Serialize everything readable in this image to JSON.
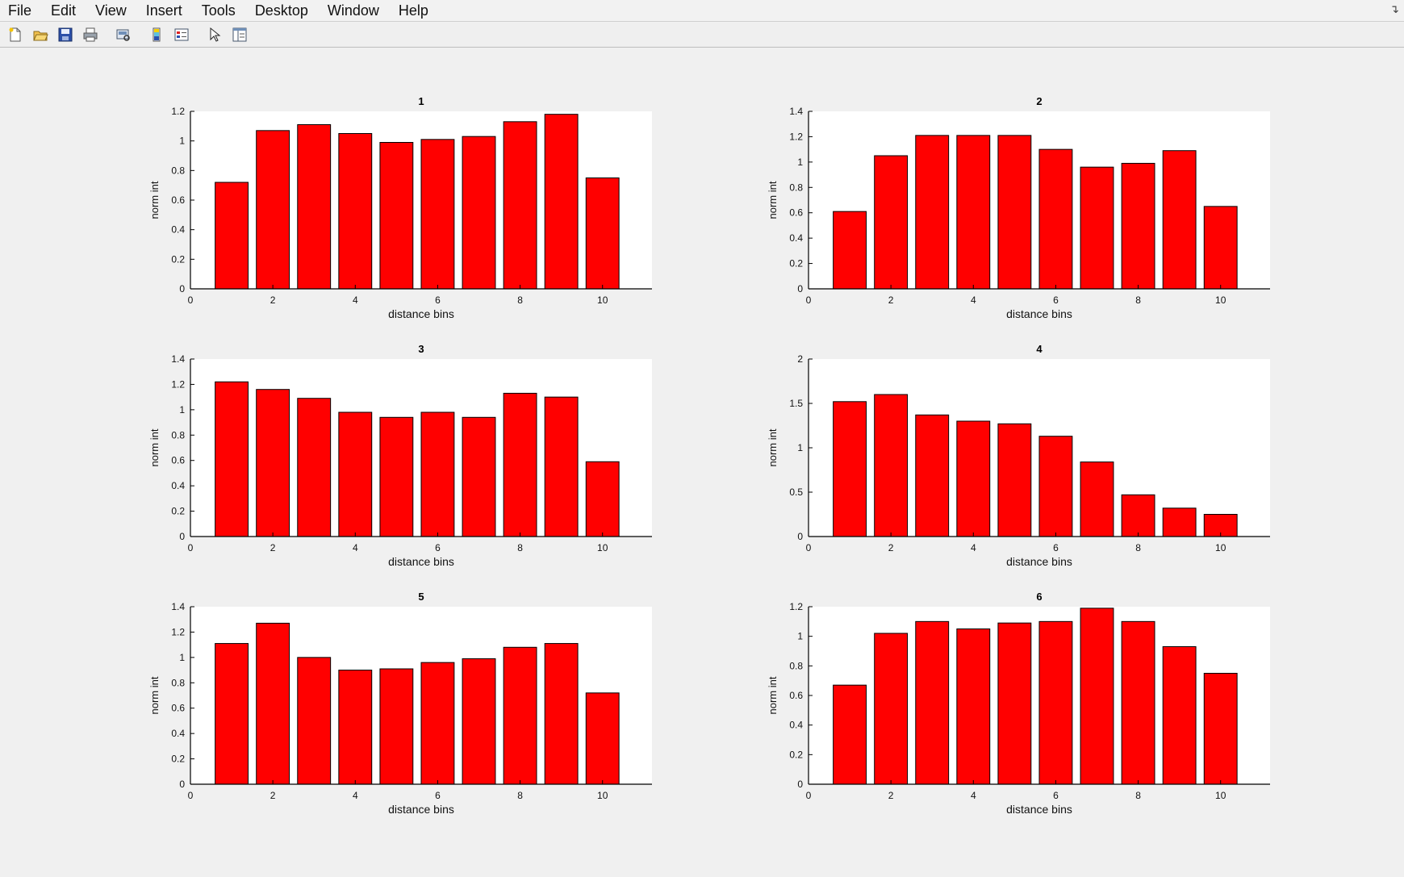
{
  "menu": {
    "items": [
      "File",
      "Edit",
      "View",
      "Insert",
      "Tools",
      "Desktop",
      "Window",
      "Help"
    ],
    "corner_icon": "dock-arrow-icon"
  },
  "toolbar": {
    "icons": [
      "new-figure-icon",
      "open-file-icon",
      "save-icon",
      "print-icon",
      "print-preview-icon",
      "colorbar-icon",
      "legend-icon",
      "edit-plot-arrow-icon",
      "property-inspector-icon"
    ]
  },
  "colors": {
    "bar": "#ff0000",
    "bar_edge": "#000000",
    "axes_bg": "#ffffff",
    "figure_bg": "#f0f0f0"
  },
  "chart_data": [
    {
      "type": "bar",
      "title": "1",
      "xlabel": "distance bins",
      "ylabel": "norm int",
      "categories": [
        1,
        2,
        3,
        4,
        5,
        6,
        7,
        8,
        9,
        10
      ],
      "values": [
        0.72,
        1.07,
        1.11,
        1.05,
        0.99,
        1.01,
        1.03,
        1.13,
        1.18,
        0.75
      ],
      "xlim": [
        0,
        11.2
      ],
      "ylim": [
        0,
        1.2
      ],
      "xticks": [
        0,
        2,
        4,
        6,
        8,
        10
      ],
      "yticks": [
        0,
        0.2,
        0.4,
        0.6,
        0.8,
        1,
        1.2
      ],
      "yticklabels": [
        "0",
        "0.2",
        "0.4",
        "0.6",
        "0.8",
        "1",
        "1.2"
      ],
      "grid": false
    },
    {
      "type": "bar",
      "title": "2",
      "xlabel": "distance bins",
      "ylabel": "norm int",
      "categories": [
        1,
        2,
        3,
        4,
        5,
        6,
        7,
        8,
        9,
        10
      ],
      "values": [
        0.61,
        1.05,
        1.21,
        1.21,
        1.21,
        1.1,
        0.96,
        0.99,
        1.09,
        0.65
      ],
      "xlim": [
        0,
        11.2
      ],
      "ylim": [
        0,
        1.4
      ],
      "xticks": [
        0,
        2,
        4,
        6,
        8,
        10
      ],
      "yticks": [
        0,
        0.2,
        0.4,
        0.6,
        0.8,
        1,
        1.2,
        1.4
      ],
      "yticklabels": [
        "0",
        "0.2",
        "0.4",
        "0.6",
        "0.8",
        "1",
        "1.2",
        "1.4"
      ],
      "grid": false
    },
    {
      "type": "bar",
      "title": "3",
      "xlabel": "distance bins",
      "ylabel": "norm int",
      "categories": [
        1,
        2,
        3,
        4,
        5,
        6,
        7,
        8,
        9,
        10
      ],
      "values": [
        1.22,
        1.16,
        1.09,
        0.98,
        0.94,
        0.98,
        0.94,
        1.13,
        1.1,
        0.59
      ],
      "xlim": [
        0,
        11.2
      ],
      "ylim": [
        0,
        1.4
      ],
      "xticks": [
        0,
        2,
        4,
        6,
        8,
        10
      ],
      "yticks": [
        0,
        0.2,
        0.4,
        0.6,
        0.8,
        1,
        1.2,
        1.4
      ],
      "yticklabels": [
        "0",
        "0.2",
        "0.4",
        "0.6",
        "0.8",
        "1",
        "1.2",
        "1.4"
      ],
      "grid": false
    },
    {
      "type": "bar",
      "title": "4",
      "xlabel": "distance bins",
      "ylabel": "norm int",
      "categories": [
        1,
        2,
        3,
        4,
        5,
        6,
        7,
        8,
        9,
        10
      ],
      "values": [
        1.52,
        1.6,
        1.37,
        1.3,
        1.27,
        1.13,
        0.84,
        0.47,
        0.32,
        0.25
      ],
      "xlim": [
        0,
        11.2
      ],
      "ylim": [
        0,
        2
      ],
      "xticks": [
        0,
        2,
        4,
        6,
        8,
        10
      ],
      "yticks": [
        0,
        0.5,
        1,
        1.5,
        2
      ],
      "yticklabels": [
        "0",
        "0.5",
        "1",
        "1.5",
        "2"
      ],
      "grid": false
    },
    {
      "type": "bar",
      "title": "5",
      "xlabel": "distance bins",
      "ylabel": "norm int",
      "categories": [
        1,
        2,
        3,
        4,
        5,
        6,
        7,
        8,
        9,
        10
      ],
      "values": [
        1.11,
        1.27,
        1.0,
        0.9,
        0.91,
        0.96,
        0.99,
        1.08,
        1.11,
        0.72
      ],
      "xlim": [
        0,
        11.2
      ],
      "ylim": [
        0,
        1.4
      ],
      "xticks": [
        0,
        2,
        4,
        6,
        8,
        10
      ],
      "yticks": [
        0,
        0.2,
        0.4,
        0.6,
        0.8,
        1,
        1.2,
        1.4
      ],
      "yticklabels": [
        "0",
        "0.2",
        "0.4",
        "0.6",
        "0.8",
        "1",
        "1.2",
        "1.4"
      ],
      "grid": false
    },
    {
      "type": "bar",
      "title": "6",
      "xlabel": "distance bins",
      "ylabel": "norm int",
      "categories": [
        1,
        2,
        3,
        4,
        5,
        6,
        7,
        8,
        9,
        10
      ],
      "values": [
        0.67,
        1.02,
        1.1,
        1.05,
        1.09,
        1.1,
        1.19,
        1.1,
        0.93,
        0.75
      ],
      "xlim": [
        0,
        11.2
      ],
      "ylim": [
        0,
        1.2
      ],
      "xticks": [
        0,
        2,
        4,
        6,
        8,
        10
      ],
      "yticks": [
        0,
        0.2,
        0.4,
        0.6,
        0.8,
        1,
        1.2
      ],
      "yticklabels": [
        "0",
        "0.2",
        "0.4",
        "0.6",
        "0.8",
        "1",
        "1.2"
      ],
      "grid": false
    }
  ]
}
